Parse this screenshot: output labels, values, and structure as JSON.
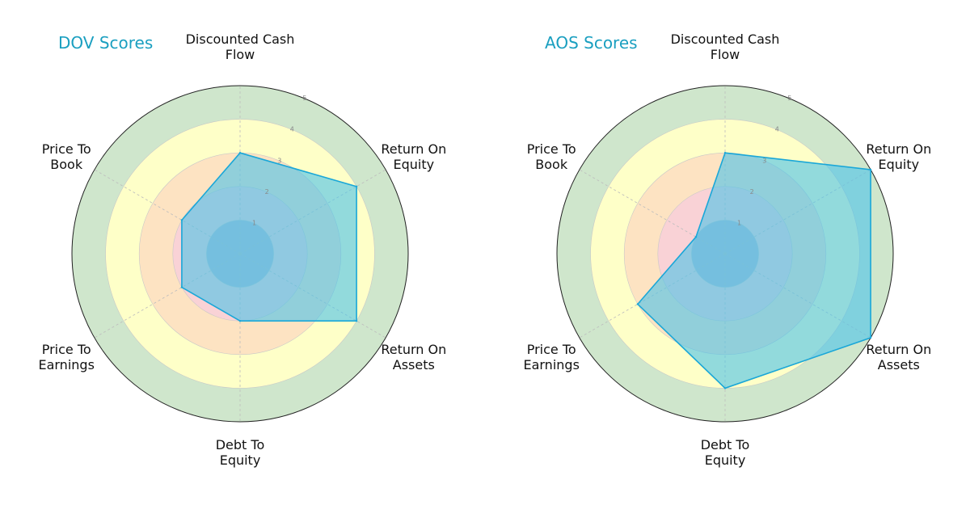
{
  "chart_data": [
    {
      "type": "radar",
      "title": "DOV Scores",
      "axes": [
        "Discounted Cash Flow",
        "Return On Equity",
        "Return On Assets",
        "Debt To Equity",
        "Price To Earnings",
        "Price To Book"
      ],
      "axis_label_lines": [
        [
          "Discounted Cash",
          "Flow"
        ],
        [
          "Return On",
          "Equity"
        ],
        [
          "Return On",
          "Assets"
        ],
        [
          "Debt To",
          "Equity"
        ],
        [
          "Price To",
          "Earnings"
        ],
        [
          "Price To",
          "Book"
        ]
      ],
      "values": [
        3,
        4,
        4,
        2,
        2,
        2
      ],
      "rlim": [
        0,
        5
      ],
      "rticks": [
        1,
        2,
        3,
        4,
        5
      ],
      "grid": true
    },
    {
      "type": "radar",
      "title": "AOS Scores",
      "axes": [
        "Discounted Cash Flow",
        "Return On Equity",
        "Return On Assets",
        "Debt To Equity",
        "Price To Earnings",
        "Price To Book"
      ],
      "axis_label_lines": [
        [
          "Discounted Cash",
          "Flow"
        ],
        [
          "Return On",
          "Equity"
        ],
        [
          "Return On",
          "Assets"
        ],
        [
          "Debt To",
          "Equity"
        ],
        [
          "Price To",
          "Earnings"
        ],
        [
          "Price To",
          "Book"
        ]
      ],
      "values": [
        3,
        5,
        5,
        4,
        3,
        1
      ],
      "rlim": [
        0,
        5
      ],
      "rticks": [
        1,
        2,
        3,
        4,
        5
      ],
      "grid": true
    }
  ],
  "colors": {
    "band_1": "#b3b8d0",
    "band_2": "#f9d2d6",
    "band_3": "#fde3c2",
    "band_4": "#feffc8",
    "band_5": "#cfe6cc",
    "series_fill": "#4fc3e8",
    "series_line": "#1aa7d8",
    "title": "#1a9fc0"
  }
}
